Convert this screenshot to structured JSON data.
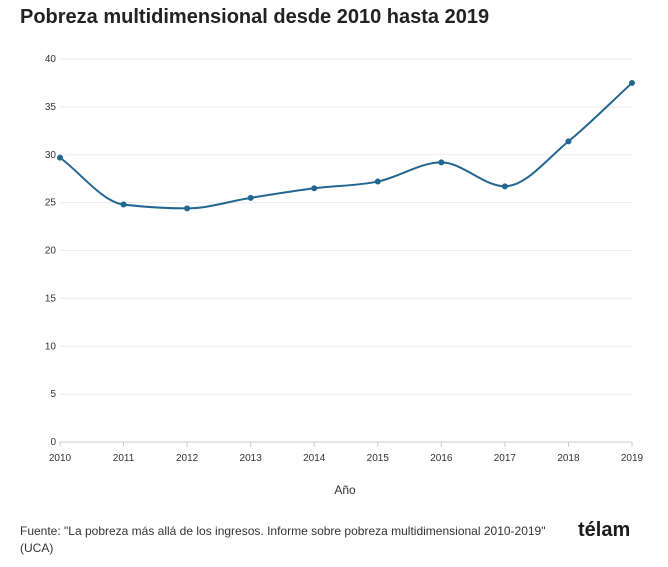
{
  "chart_data": {
    "type": "line",
    "title": "Pobreza multidimensional desde 2010 hasta 2019",
    "xlabel": "Año",
    "ylabel": "",
    "x": [
      "2010",
      "2011",
      "2012",
      "2013",
      "2014",
      "2015",
      "2016",
      "2017",
      "2018",
      "2019"
    ],
    "series": [
      {
        "values": [
          29.7,
          24.8,
          24.4,
          25.5,
          26.5,
          27.2,
          29.2,
          26.7,
          31.4,
          37.5
        ]
      }
    ],
    "ylim": [
      0,
      40
    ],
    "yticks": [
      0,
      5,
      10,
      15,
      20,
      25,
      30,
      35,
      40
    ],
    "grid": "horizontal",
    "line_color": "#23668f"
  },
  "source": "Fuente: \"La pobreza más allá de los ingresos. Informe sobre pobreza multidimensional 2010-2019\" (UCA)",
  "logo": "télam"
}
